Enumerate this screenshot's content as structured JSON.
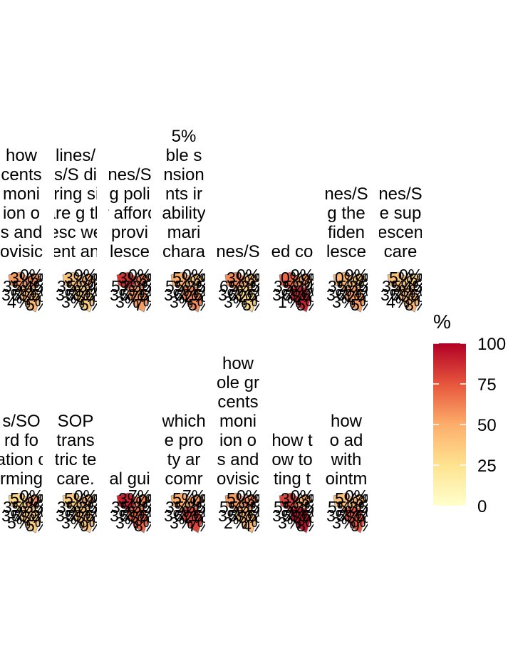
{
  "chart_data": {
    "type": "heatmap",
    "subtype": "choropleth small multiples",
    "legend": {
      "title": "%",
      "ticks": [
        0,
        25,
        50,
        75,
        100
      ],
      "position": "right",
      "colors": [
        "#FFFFCC",
        "#FEE391",
        "#FDAE6B",
        "#E6553C",
        "#B10026"
      ]
    },
    "panels": [
      {
        "title_lines": [
          "how",
          "cents",
          "moni",
          "ion o",
          "s and",
          "ovisic"
        ],
        "region_values": [
          55,
          60,
          45
        ],
        "labels": [
          "3%",
          "0%",
          "5%",
          "3%",
          "5%",
          "4%",
          "5%",
          "3%",
          "5%",
          "3%",
          "5%",
          "4%",
          "5%"
        ]
      },
      {
        "title_lines": [
          "lines/",
          "nes/S ding",
          "nitoring sibilit",
          "care g the",
          "olesc welc",
          "ent an"
        ],
        "region_values": [
          40,
          45,
          35
        ],
        "labels": [
          "3%",
          "9%",
          "9%",
          "3%",
          "5%",
          "3%",
          "4%",
          "3%",
          "5%",
          "3%",
          "5%",
          "3%",
          "5%"
        ]
      },
      {
        "title_lines": [
          "nes/S",
          "g poli",
          "r afforc",
          "provi",
          "lesce"
        ],
        "region_values": [
          85,
          65,
          55
        ],
        "labels": [
          "3%",
          "0%",
          "3%",
          "5%",
          "7%",
          "3%",
          "5%",
          "3%",
          "5%",
          "7%",
          "5%",
          "3%",
          "7%"
        ]
      },
      {
        "title_lines": [
          "5%",
          "ble s",
          "nsion",
          "nts ir",
          "ability",
          "mari",
          "chara"
        ],
        "region_values": [
          50,
          40,
          60
        ],
        "labels": [
          "5%",
          "0%",
          "3%",
          "5%",
          "5%",
          "3%",
          "5%",
          "3%",
          "6%",
          "2%",
          "5%",
          "3%",
          "5%"
        ]
      },
      {
        "title_lines": [
          "nes/S"
        ],
        "region_values": [
          60,
          45,
          30
        ],
        "labels": [
          "3%",
          "0%",
          "3%",
          "6%",
          "5%",
          "3%",
          "5%",
          "3%",
          "6%",
          "2%",
          "5%",
          "3%",
          "5%"
        ]
      },
      {
        "title_lines": [
          "ed co"
        ],
        "region_values": [
          70,
          55,
          90
        ],
        "labels": [
          "0%",
          "9%",
          "9%",
          "3%",
          "5%",
          "3%",
          "4%",
          "3%",
          "6%",
          "3%",
          "8%",
          "1%",
          "5%"
        ]
      },
      {
        "title_lines": [
          "nes/S",
          "g the",
          "fiden",
          "lesce"
        ],
        "region_values": [
          45,
          40,
          55
        ],
        "labels": [
          "0%",
          "9%",
          "9%",
          "3%",
          "5%",
          "3%",
          "5%",
          "3%",
          "6%",
          "2%",
          "5%",
          "3%",
          "5%"
        ]
      },
      {
        "title_lines": [
          "nes/S",
          "e sup",
          "escen",
          "care"
        ],
        "region_values": [
          40,
          35,
          45
        ],
        "labels": [
          "5%",
          "0%",
          "5%",
          "3%",
          "5%",
          "4%",
          "5%",
          "3%",
          "5%",
          "3%",
          "5%",
          "4%",
          "8%"
        ]
      },
      {
        "title_lines": [
          "s/SO",
          "rd fo",
          "ation c",
          "rming"
        ],
        "region_values": [
          30,
          55,
          35
        ],
        "labels": [
          "5%",
          "0%",
          "0%",
          "3%",
          "5%",
          "3%",
          "5%",
          "3%",
          "5%",
          "3%",
          "3%",
          "5%",
          "5%"
        ]
      },
      {
        "title_lines": [
          "SOP",
          "trans",
          "tric te",
          "care."
        ],
        "region_values": [
          35,
          45,
          40
        ],
        "labels": [
          "5%",
          "0%",
          "9%",
          "3%",
          "5%",
          "3%",
          "5%",
          "3%",
          "5%",
          "3%",
          "5%",
          "3%",
          "9%"
        ]
      },
      {
        "title_lines": [
          "al gui"
        ],
        "region_values": [
          90,
          60,
          70
        ],
        "labels": [
          "3%",
          "7%",
          "0%",
          "3%",
          "5%",
          "3%",
          "5%",
          "3%",
          "5%",
          "3%",
          "5%",
          "3%",
          "8%"
        ]
      },
      {
        "title_lines": [
          "which",
          "e pro",
          "ty ar",
          "comr"
        ],
        "region_values": [
          50,
          55,
          80
        ],
        "labels": [
          "5%",
          "7%",
          "0%",
          "3%",
          "5%",
          "3%",
          "5%",
          "3%",
          "6%",
          "2%",
          "5%",
          "3%",
          "7%"
        ]
      },
      {
        "title_lines": [
          "how",
          "ole gr",
          "cents",
          "moni",
          "ion o",
          "s and",
          "ovisic"
        ],
        "region_values": [
          55,
          60,
          45
        ],
        "labels": [
          "5%",
          "0%",
          "3%",
          "5%",
          "5%",
          "3%",
          "5%",
          "3%",
          "5%",
          "3%",
          "5%",
          "2%",
          "4%"
        ]
      },
      {
        "title_lines": [
          "how t",
          "ow to",
          "ting t"
        ],
        "region_values": [
          80,
          50,
          95
        ],
        "labels": [
          "3%",
          "0%",
          "3%",
          "5%",
          "5%",
          "3%",
          "5%",
          "3%",
          "5%",
          "3%",
          "5%",
          "3%",
          "8%"
        ]
      },
      {
        "title_lines": [
          "how",
          "o ad",
          "with",
          "ointm"
        ],
        "region_values": [
          40,
          45,
          75
        ],
        "labels": [
          "5%",
          "0%",
          "3%",
          "5%",
          "5%",
          "3%",
          "5%",
          "3%",
          "5%",
          "3%",
          "5%",
          "3%",
          "9%"
        ]
      }
    ]
  }
}
